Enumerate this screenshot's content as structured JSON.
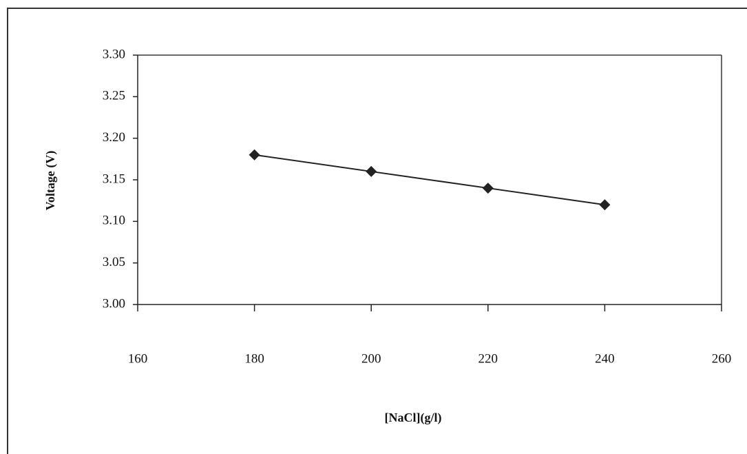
{
  "chart_data": {
    "type": "line",
    "x_label": "[NaCl](g/l)",
    "y_label": "Voltage (V)",
    "x": [
      180,
      200,
      220,
      240
    ],
    "values": [
      3.18,
      3.16,
      3.14,
      3.12
    ],
    "color": "#222222",
    "xlim": [
      160,
      260
    ],
    "xticks": [
      160,
      180,
      200,
      220,
      240,
      260
    ],
    "ylim": [
      3.0,
      3.3
    ],
    "yticks": [
      {
        "value": 3.0,
        "label": "3.00"
      },
      {
        "value": 3.05,
        "label": "3.05"
      },
      {
        "value": 3.1,
        "label": "3.10"
      },
      {
        "value": 3.15,
        "label": "3.15"
      },
      {
        "value": 3.2,
        "label": "3.20"
      },
      {
        "value": 3.25,
        "label": "3.25"
      },
      {
        "value": 3.3,
        "label": "3.30"
      }
    ],
    "grid": false
  }
}
